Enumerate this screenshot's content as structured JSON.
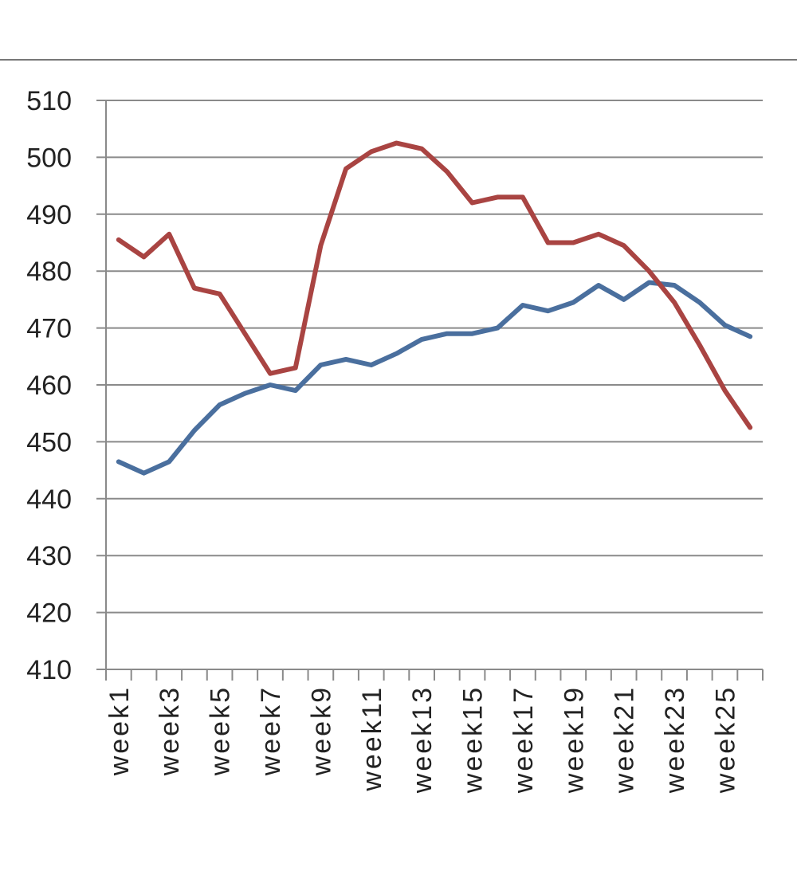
{
  "chart_data": {
    "type": "line",
    "title": "",
    "xlabel": "",
    "ylabel": "",
    "ylim": [
      410,
      510
    ],
    "yticks": [
      410,
      420,
      430,
      440,
      450,
      460,
      470,
      480,
      490,
      500,
      510
    ],
    "grid": "horizontal",
    "categories": [
      "week1",
      "week2",
      "week3",
      "week4",
      "week5",
      "week6",
      "week7",
      "week8",
      "week9",
      "week10",
      "week11",
      "week12",
      "week13",
      "week14",
      "week15",
      "week16",
      "week17",
      "week18",
      "week19",
      "week20",
      "week21",
      "week22",
      "week23",
      "week24",
      "week25",
      "week26"
    ],
    "tick_labels": [
      "week1",
      "week3",
      "week5",
      "week7",
      "week9",
      "week11",
      "week13",
      "week15",
      "week17",
      "week19",
      "week21",
      "week23",
      "week25"
    ],
    "series": [
      {
        "color": "#4a6f9e",
        "values": [
          446.5,
          444.5,
          446.5,
          452,
          456.5,
          458.5,
          460,
          459,
          463.5,
          464.5,
          463.5,
          465.5,
          468,
          469,
          469,
          470,
          474,
          473,
          474.5,
          477.5,
          475,
          478,
          477.5,
          474.5,
          470.5,
          468.5
        ]
      },
      {
        "color": "#a94442",
        "values": [
          485.5,
          482.5,
          486.5,
          477,
          476,
          469,
          462,
          463,
          484.5,
          498,
          501,
          502.5,
          501.5,
          497.5,
          492,
          493,
          493,
          485,
          485,
          486.5,
          484.5,
          480,
          474.5,
          467,
          459,
          452.5
        ]
      }
    ]
  }
}
